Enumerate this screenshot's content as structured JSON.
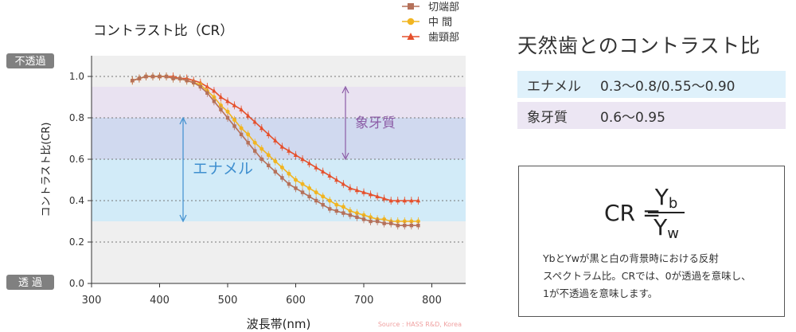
{
  "chart_data": {
    "type": "line",
    "title": "コントラスト比（CR）",
    "xlabel": "波長帯(nm)",
    "ylabel": "コントラスト比(CR)",
    "xlim": [
      300,
      850
    ],
    "ylim": [
      0,
      1.1
    ],
    "x_ticks": [
      300,
      400,
      500,
      600,
      700,
      800
    ],
    "y_ticks": [
      "0.0",
      "0.2",
      "0.4",
      "0.6",
      "0.8",
      "1.0"
    ],
    "grid": "horizontal dotted",
    "legend_position": "top-right",
    "x": [
      360,
      370,
      380,
      390,
      400,
      410,
      420,
      430,
      440,
      450,
      460,
      470,
      480,
      490,
      500,
      510,
      520,
      530,
      540,
      550,
      560,
      570,
      580,
      590,
      600,
      610,
      620,
      630,
      640,
      650,
      660,
      670,
      680,
      690,
      700,
      710,
      720,
      730,
      740,
      750,
      760,
      770,
      780
    ],
    "series": [
      {
        "name": "切端部",
        "color": "#b5715a",
        "marker": "square",
        "values": [
          0.98,
          0.99,
          1.0,
          1.0,
          1.0,
          1.0,
          0.99,
          0.99,
          0.98,
          0.97,
          0.95,
          0.92,
          0.88,
          0.84,
          0.8,
          0.76,
          0.72,
          0.68,
          0.64,
          0.6,
          0.57,
          0.54,
          0.51,
          0.48,
          0.46,
          0.44,
          0.42,
          0.4,
          0.38,
          0.36,
          0.35,
          0.34,
          0.33,
          0.32,
          0.31,
          0.3,
          0.3,
          0.29,
          0.29,
          0.28,
          0.28,
          0.28,
          0.28
        ]
      },
      {
        "name": "中 間",
        "color": "#f1b521",
        "marker": "circle",
        "values": [
          0.98,
          0.99,
          1.0,
          1.0,
          1.0,
          1.0,
          0.99,
          0.99,
          0.98,
          0.97,
          0.96,
          0.93,
          0.9,
          0.86,
          0.83,
          0.79,
          0.75,
          0.72,
          0.68,
          0.65,
          0.62,
          0.59,
          0.56,
          0.53,
          0.5,
          0.48,
          0.46,
          0.44,
          0.42,
          0.4,
          0.38,
          0.37,
          0.35,
          0.34,
          0.33,
          0.32,
          0.31,
          0.31,
          0.3,
          0.3,
          0.3,
          0.3,
          0.3
        ]
      },
      {
        "name": "歯頸部",
        "color": "#e5502c",
        "marker": "triangle",
        "values": [
          0.98,
          0.99,
          1.0,
          1.0,
          1.0,
          1.0,
          1.0,
          0.99,
          0.99,
          0.98,
          0.97,
          0.95,
          0.93,
          0.9,
          0.88,
          0.86,
          0.84,
          0.81,
          0.78,
          0.75,
          0.72,
          0.69,
          0.66,
          0.64,
          0.62,
          0.6,
          0.58,
          0.56,
          0.54,
          0.52,
          0.5,
          0.48,
          0.46,
          0.45,
          0.44,
          0.43,
          0.42,
          0.41,
          0.4,
          0.4,
          0.4,
          0.4,
          0.4
        ]
      }
    ],
    "bands": [
      {
        "name": "エナメル",
        "range": [
          0.3,
          0.8
        ],
        "color": "#d2ebf8"
      },
      {
        "name": "象牙質",
        "range": [
          0.6,
          0.95
        ],
        "color": "#e9e2f1"
      },
      {
        "name": "overlap",
        "range": [
          0.6,
          0.8
        ],
        "color": "#d0d9ef"
      }
    ],
    "annotations": {
      "enamel_label": "エナメル",
      "enamel_color": "#3f8fcf",
      "dentin_label": "象牙質",
      "dentin_color": "#8c5ca6"
    },
    "side_labels": {
      "top": "不透過",
      "bottom": "透 過"
    },
    "source": "Source : HASS R&D, Korea"
  },
  "panel": {
    "title": "天然歯とのコントラスト比",
    "enamel": {
      "label": "エナメル",
      "value": "0.3〜0.8/0.55〜0.90"
    },
    "dentin": {
      "label": "象牙質",
      "value": "0.6〜0.95"
    }
  },
  "formula": {
    "lhs": "CR =",
    "num_base": "Y",
    "num_sub": "b",
    "den_base": "Y",
    "den_sub": "w",
    "description": "YbとYwが黒と白の背景時における反射\nスペクトラム比。CRでは、0が透過を意味し、\n1が不透過を意味します。"
  }
}
